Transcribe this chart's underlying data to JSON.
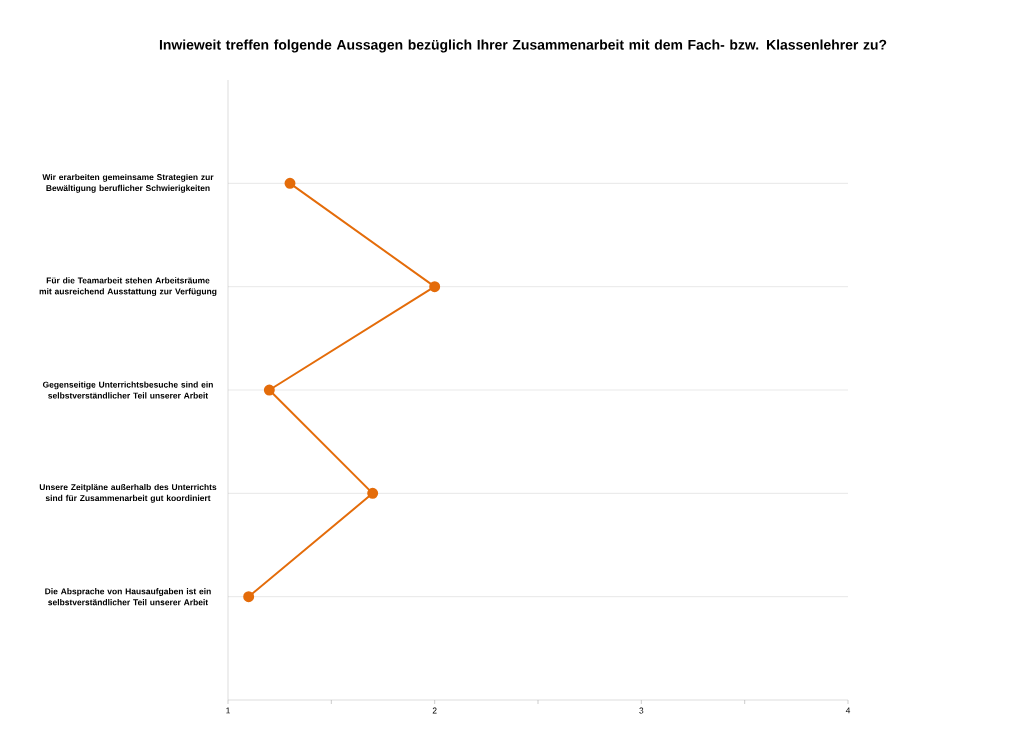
{
  "chart_data": {
    "type": "line",
    "orientation": "horizontal",
    "title": "Inwieweit treffen folgende Aussagen bezüglich Ihrer Zusammenarbeit mit dem Fach- bzw. Klassenlehrer zu?",
    "categories": [
      "Wir erarbeiten gemeinsame Strategien zur Bewältigung beruflicher Schwierigkeiten",
      "Für die Teamarbeit stehen Arbeitsräume mit ausreichend Ausstattung zur Verfügung",
      "Gegenseitige Unterrichtsbesuche sind ein selbstverständlicher Teil unserer Arbeit",
      "Unsere Zeitpläne außerhalb des Unterrichts sind für Zusammenarbeit gut koordiniert",
      "Die Absprache von Hausaufgaben ist ein selbstverständlicher Teil unserer Arbeit"
    ],
    "values": [
      1.3,
      2.0,
      1.2,
      1.7,
      1.1
    ],
    "color": "#e46c0a",
    "marker": "circle",
    "line_style": "solid",
    "grid": "y",
    "xlim": [
      1,
      4
    ],
    "xticks": [
      1,
      {
        "value": 1.5,
        "label": null
      },
      2,
      {
        "value": 2.5,
        "label": null
      },
      3,
      {
        "value": 3.5,
        "label": null
      },
      4
    ]
  }
}
